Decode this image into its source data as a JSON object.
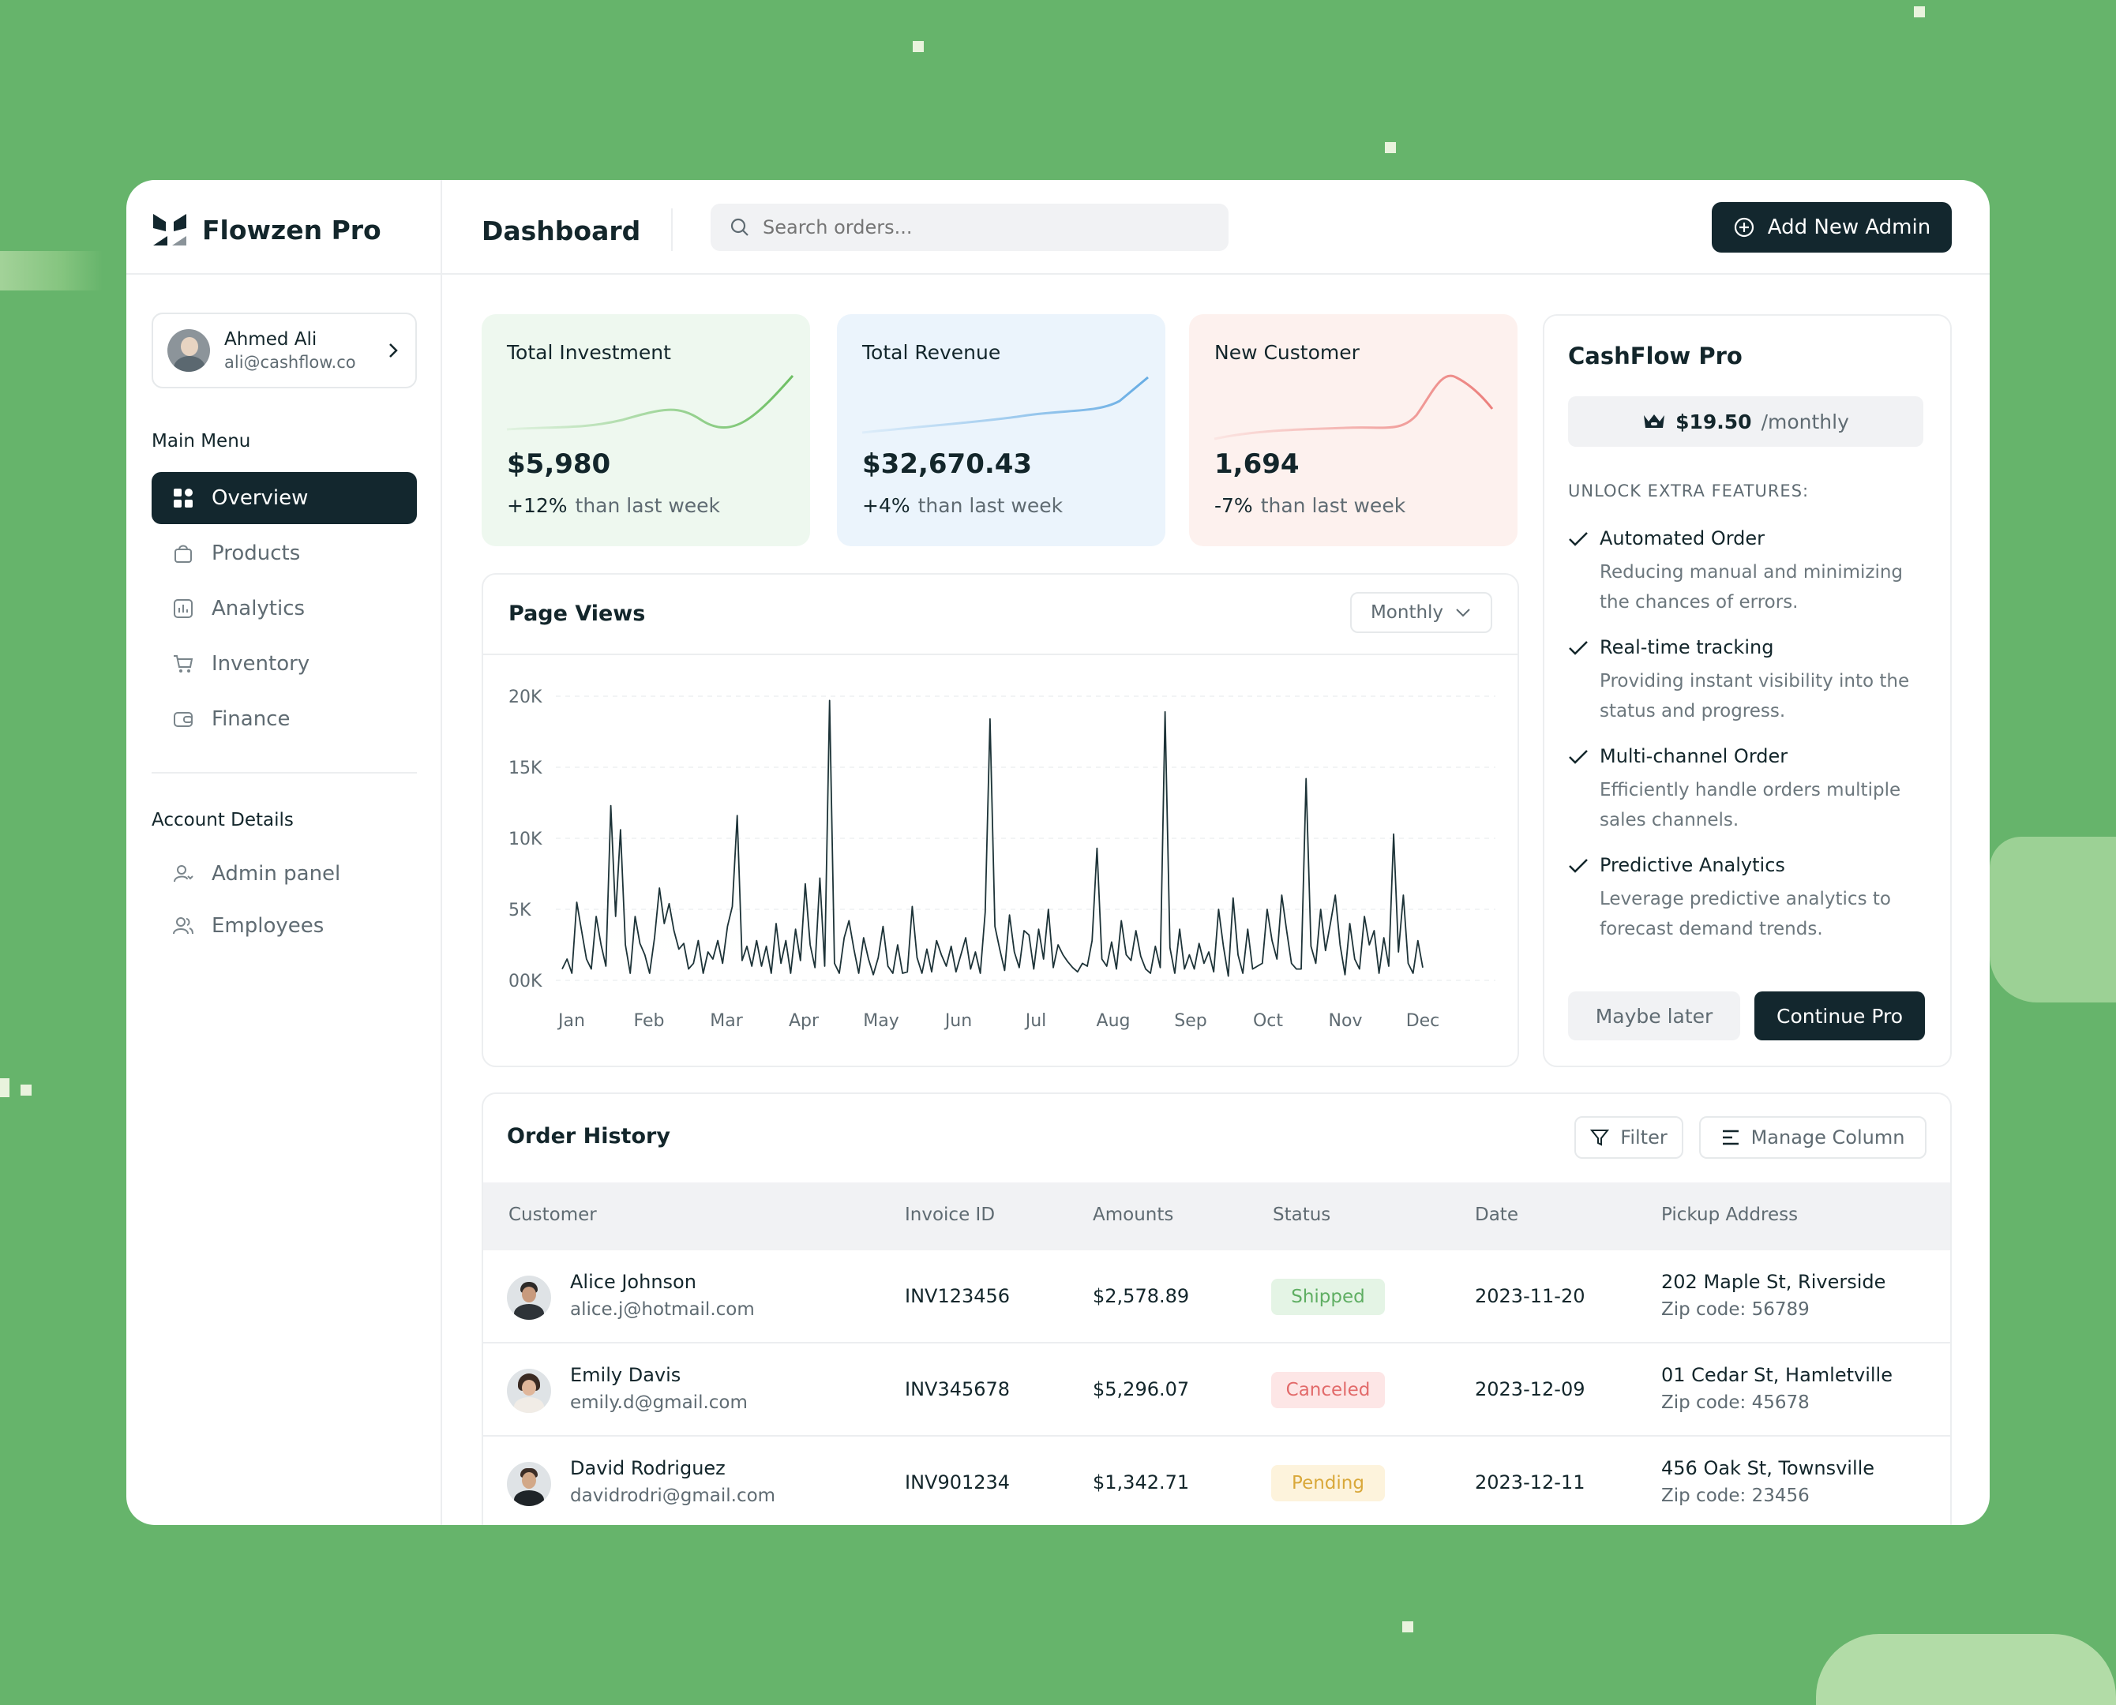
{
  "brand": {
    "name": "Flowzen Pro"
  },
  "user": {
    "name": "Ahmed Ali",
    "email": "ali@cashflow.co"
  },
  "sidebar": {
    "main_menu_label": "Main Menu",
    "main_items": [
      {
        "label": "Overview",
        "icon": "grid-icon",
        "active": true
      },
      {
        "label": "Products",
        "icon": "bag-icon"
      },
      {
        "label": "Analytics",
        "icon": "analytics-icon"
      },
      {
        "label": "Inventory",
        "icon": "cart-icon"
      },
      {
        "label": "Finance",
        "icon": "wallet-icon"
      }
    ],
    "account_label": "Account Details",
    "account_items": [
      {
        "label": "Admin panel",
        "icon": "admin-icon"
      },
      {
        "label": "Employees",
        "icon": "users-icon"
      }
    ]
  },
  "header": {
    "title": "Dashboard",
    "search_placeholder": "Search orders...",
    "add_admin_label": "Add New Admin"
  },
  "stats": [
    {
      "title": "Total Investment",
      "value": "$5,980",
      "change": "+12%",
      "change_text": "than last week",
      "bg": "#eef8ef",
      "line_color": "#6dbf63"
    },
    {
      "title": "Total Revenue",
      "value": "$32,670.43",
      "change": "+4%",
      "change_text": "than last week",
      "bg": "#ebf4fc",
      "line_color": "#68ade4"
    },
    {
      "title": "New Customer",
      "value": "1,694",
      "change": "-7%",
      "change_text": "than last week",
      "bg": "#fdf1ee",
      "line_color": "#ec7f7c"
    }
  ],
  "page_views": {
    "title": "Page Views",
    "period": "Monthly"
  },
  "chart_data": {
    "type": "line",
    "title": "Page Views",
    "x_ticks": [
      "Jan",
      "Feb",
      "Mar",
      "Apr",
      "May",
      "Jun",
      "Jul",
      "Aug",
      "Sep",
      "Oct",
      "Nov",
      "Dec"
    ],
    "y_ticks": [
      "20K",
      "15K",
      "10K",
      "5K",
      "00K"
    ],
    "ylim": [
      0,
      20000
    ],
    "grid": true,
    "series": [
      {
        "values": [
          800,
          1500,
          500,
          5500,
          3500,
          1500,
          800,
          4500,
          2500,
          1000,
          12300,
          4500,
          10600,
          2500,
          500,
          4500,
          2600,
          1800,
          500,
          3000,
          6500,
          4000,
          5400,
          3500,
          2200,
          2600,
          800,
          1200,
          2800,
          500,
          2000,
          1500,
          2800,
          1200,
          3800,
          5200,
          11600,
          1400,
          2400,
          1000,
          2800,
          1000,
          2400,
          500,
          4000,
          1200,
          2800,
          500,
          3600,
          1400,
          6800,
          2500,
          900,
          7200,
          1000,
          19700,
          1200,
          500,
          3000,
          4200,
          2200,
          500,
          3000,
          1500,
          400,
          1600,
          3800,
          1000,
          500,
          2500,
          500,
          600,
          5200,
          1600,
          500,
          2200,
          600,
          2800,
          1800,
          1000,
          2400,
          600,
          1800,
          3000,
          800,
          2000,
          500,
          4800,
          18400,
          3800,
          2200,
          700,
          4600,
          2000,
          900,
          3500,
          3200,
          800,
          3600,
          1500,
          5000,
          900,
          2500,
          1800,
          1300,
          900,
          600,
          1200,
          1000,
          2800,
          9300,
          1500,
          1000,
          2700,
          800,
          4200,
          1800,
          1400,
          3500,
          1700,
          800,
          500,
          2400,
          900,
          18900,
          2300,
          500,
          3600,
          800,
          1800,
          800,
          2600,
          1200,
          2000,
          600,
          5000,
          2400,
          300,
          5800,
          1800,
          500,
          3600,
          800,
          1000,
          1200,
          5000,
          2800,
          1500,
          6000,
          3500,
          1200,
          800,
          800,
          14200,
          2400,
          1200,
          5000,
          2100,
          4000,
          6000,
          2500,
          400,
          4000,
          1500,
          800,
          4500,
          2500,
          3500,
          500,
          3000,
          1000,
          10300,
          2000,
          6000,
          1200,
          500,
          2800,
          900
        ]
      }
    ]
  },
  "cashflow": {
    "title": "CashFlow Pro",
    "price": "$19.50",
    "period": "/monthly",
    "unlock_label": "UNLOCK EXTRA FEATURES:",
    "features": [
      {
        "title": "Automated Order",
        "desc": "Reducing manual and minimizing the chances of errors."
      },
      {
        "title": "Real-time tracking",
        "desc": "Providing instant visibility into the status and progress."
      },
      {
        "title": "Multi-channel Order",
        "desc": "Efficiently handle orders multiple sales channels."
      },
      {
        "title": "Predictive Analytics",
        "desc": "Leverage predictive analytics to forecast demand trends."
      }
    ],
    "later_label": "Maybe later",
    "continue_label": "Continue Pro"
  },
  "orders": {
    "title": "Order History",
    "filter_label": "Filter",
    "manage_label": "Manage Column",
    "columns": [
      "Customer",
      "Invoice ID",
      "Amounts",
      "Status",
      "Date",
      "Pickup Address"
    ],
    "rows": [
      {
        "name": "Alice Johnson",
        "email": "alice.j@hotmail.com",
        "invoice": "INV123456",
        "amount": "$2,578.89",
        "status": "Shipped",
        "status_bg": "#e4f4e5",
        "status_fg": "#5fae63",
        "date": "2023-11-20",
        "address": "202 Maple St, Riverside",
        "zip": "Zip code: 56789"
      },
      {
        "name": "Emily Davis",
        "email": "emily.d@gmail.com",
        "invoice": "INV345678",
        "amount": "$5,296.07",
        "status": "Canceled",
        "status_bg": "#fde6e6",
        "status_fg": "#e26a6a",
        "date": "2023-12-09",
        "address": "01 Cedar St, Hamletville",
        "zip": "Zip code: 45678"
      },
      {
        "name": "David Rodriguez",
        "email": "davidrodri@gmail.com",
        "invoice": "INV901234",
        "amount": "$1,342.71",
        "status": "Pending",
        "status_bg": "#fdf3dc",
        "status_fg": "#d9a83a",
        "date": "2023-12-11",
        "address": "456 Oak St, Townsville",
        "zip": "Zip code: 23456"
      }
    ]
  }
}
